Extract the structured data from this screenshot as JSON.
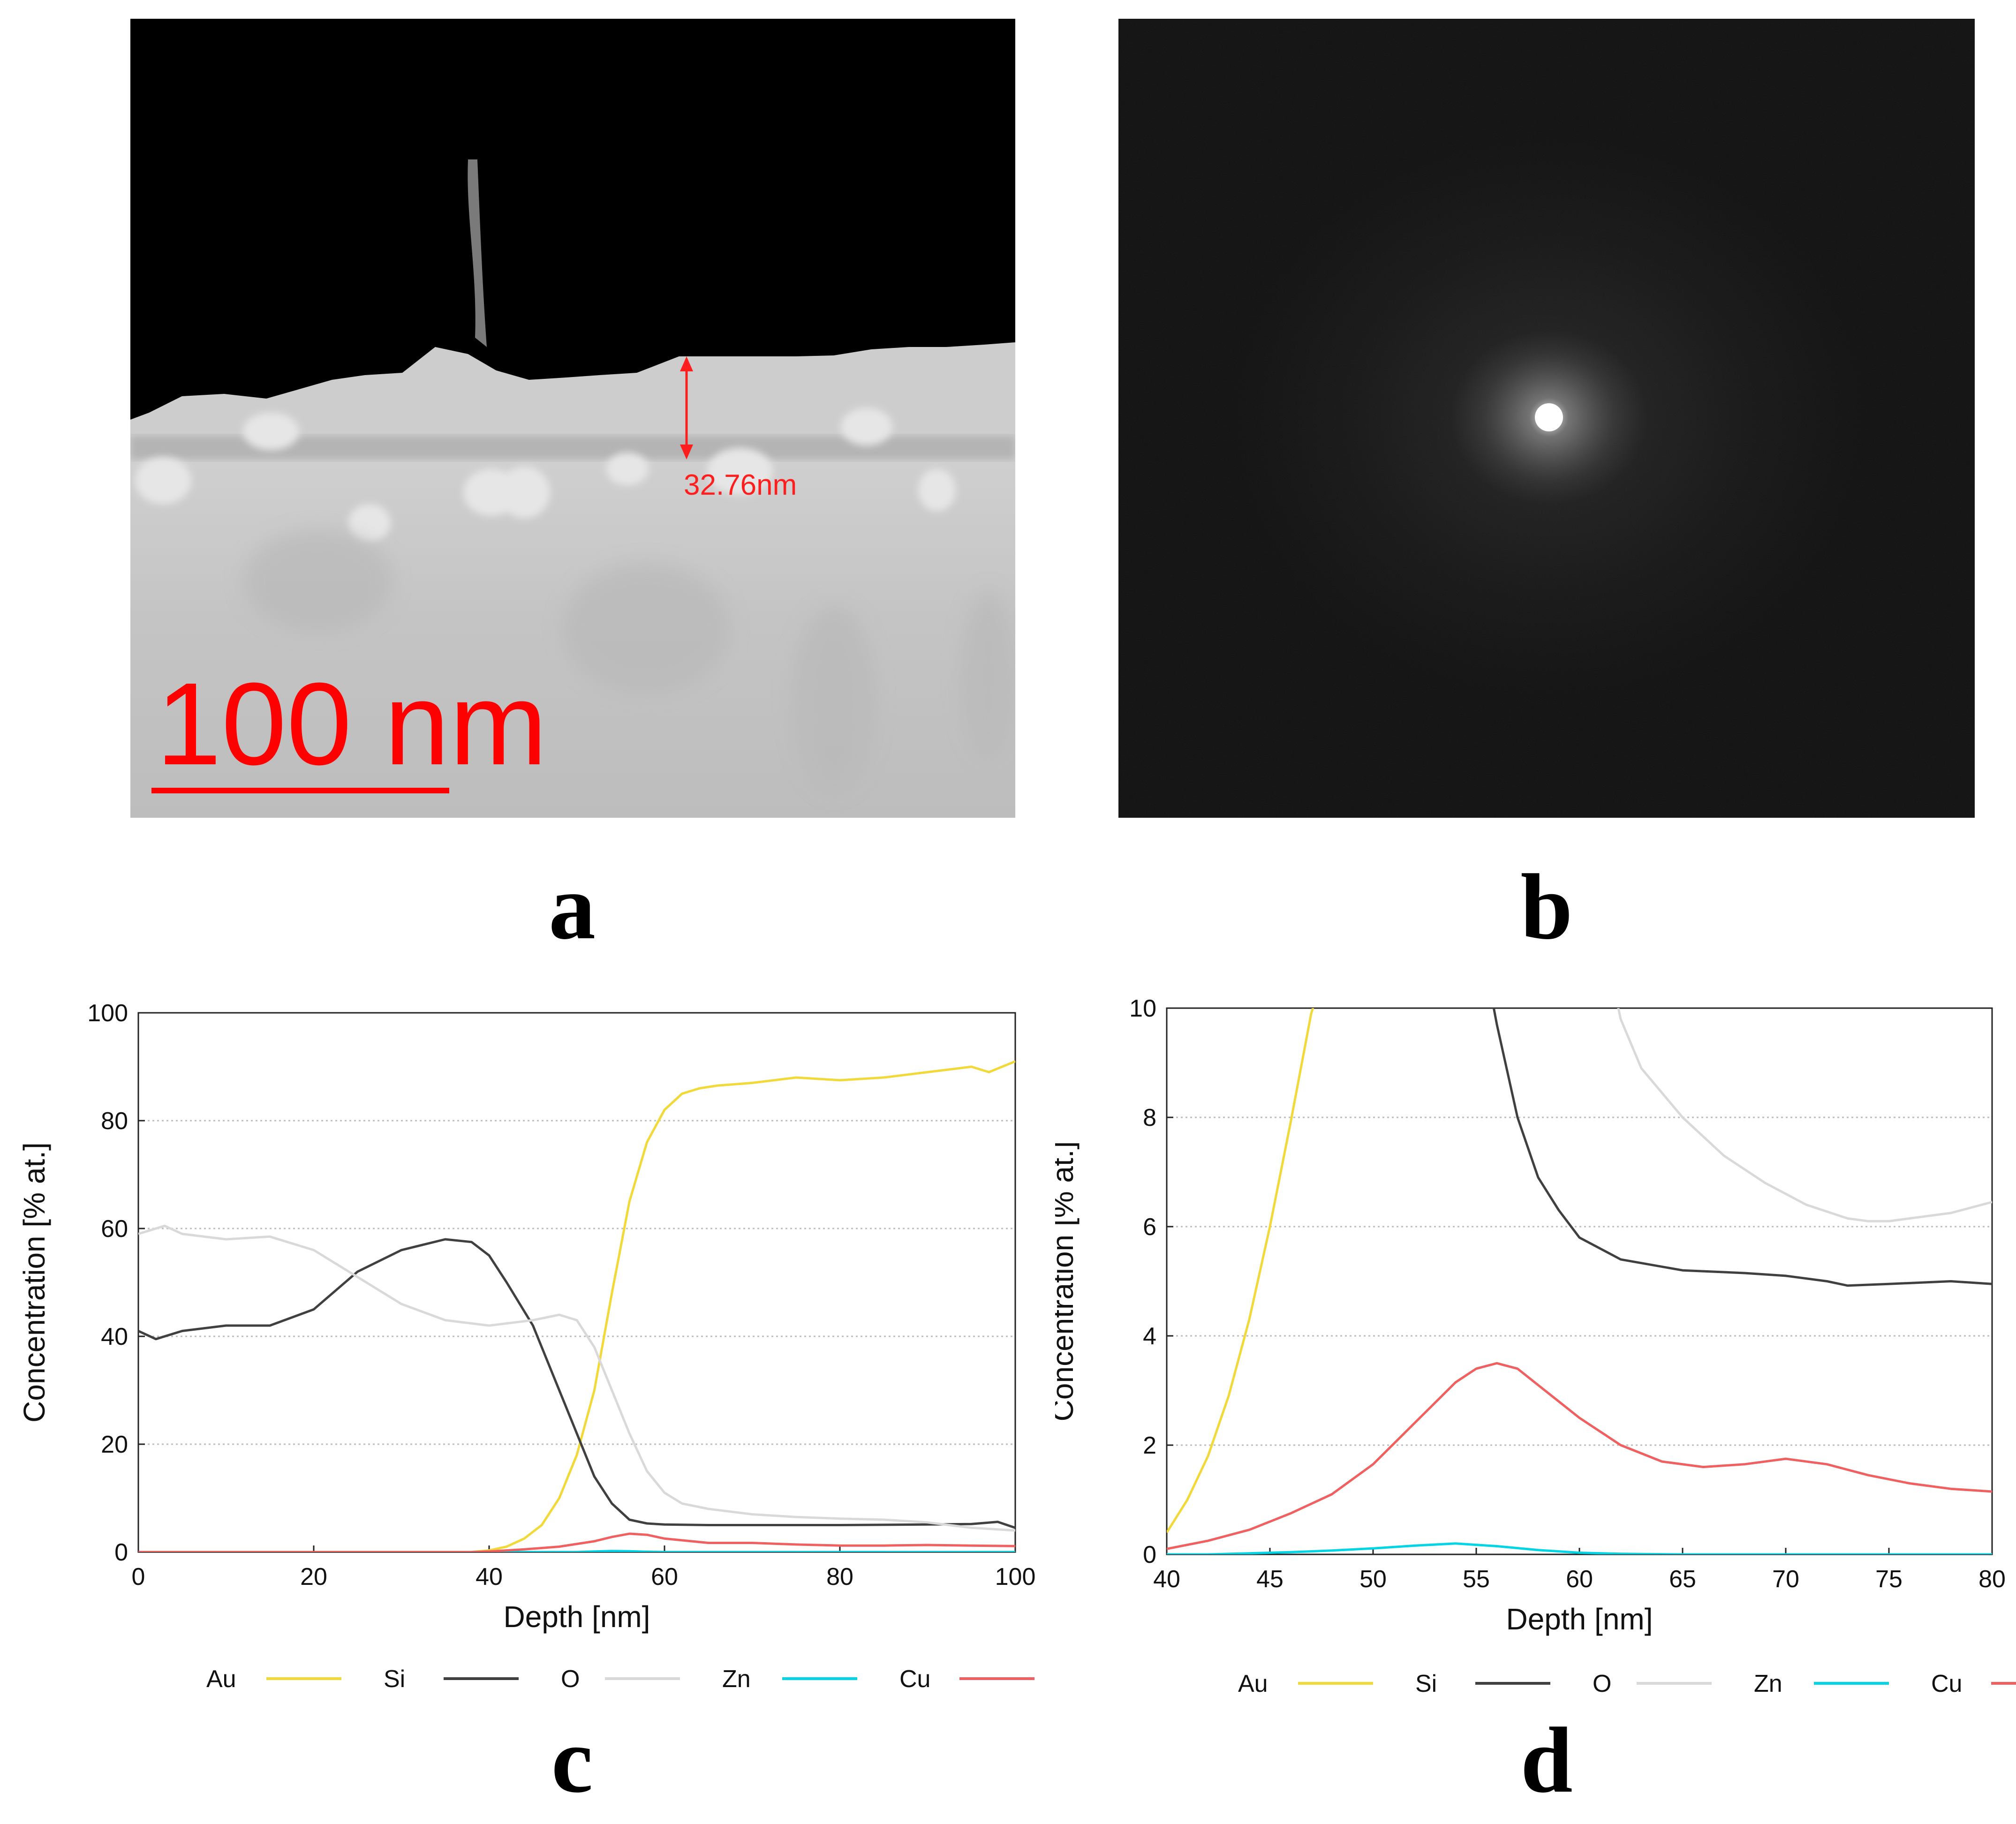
{
  "panels": {
    "a": {
      "label": "a",
      "measurement": "32.76nm",
      "scalebar": "100 nm"
    },
    "b": {
      "label": "b"
    },
    "c": {
      "label": "c"
    },
    "d": {
      "label": "d"
    }
  },
  "colors": {
    "Au": "#f2d93a",
    "Si": "#404040",
    "O": "#d9d9d9",
    "Zn": "#00d5e6",
    "Cu": "#f06060",
    "annotation": "#ff1e1e"
  },
  "chart_data": [
    {
      "id": "c",
      "type": "line",
      "title": "",
      "xlabel": "Depth [nm]",
      "ylabel": "Concentration [% at.]",
      "xlim": [
        0,
        100
      ],
      "ylim": [
        0,
        100
      ],
      "xticks": [
        0,
        20,
        40,
        60,
        80,
        100
      ],
      "yticks": [
        0,
        20,
        40,
        60,
        80,
        100
      ],
      "grid": "horizontal dotted",
      "legend": "bottom",
      "series": [
        {
          "name": "Au",
          "x": [
            0,
            38,
            40,
            42,
            44,
            46,
            48,
            50,
            52,
            54,
            56,
            58,
            60,
            62,
            64,
            66,
            70,
            75,
            80,
            85,
            90,
            95,
            97,
            100
          ],
          "y": [
            0,
            0,
            0.3,
            1,
            2.5,
            5,
            10,
            18,
            30,
            48,
            65,
            76,
            82,
            85,
            86,
            86.5,
            87,
            88,
            87.5,
            88,
            89,
            90,
            89,
            91
          ]
        },
        {
          "name": "Si",
          "x": [
            0,
            2,
            5,
            10,
            15,
            20,
            25,
            30,
            35,
            38,
            40,
            42,
            45,
            48,
            50,
            52,
            54,
            56,
            58,
            60,
            65,
            70,
            80,
            90,
            95,
            98,
            100
          ],
          "y": [
            41,
            39.5,
            41,
            42,
            42,
            45,
            52,
            56,
            58,
            57.5,
            55,
            50,
            42,
            30,
            22,
            14,
            9,
            6,
            5.3,
            5.1,
            5,
            5,
            5,
            5.1,
            5.2,
            5.6,
            4.5
          ]
        },
        {
          "name": "O",
          "x": [
            0,
            3,
            5,
            10,
            15,
            20,
            25,
            30,
            35,
            40,
            45,
            48,
            50,
            52,
            54,
            56,
            58,
            60,
            62,
            65,
            70,
            75,
            80,
            85,
            90,
            95,
            100
          ],
          "y": [
            59,
            60.5,
            59,
            58,
            58.5,
            56,
            51,
            46,
            43,
            42,
            43,
            44,
            43,
            38,
            30,
            22,
            15,
            11,
            9,
            8,
            7,
            6.5,
            6.2,
            6,
            5.5,
            4.5,
            4
          ]
        },
        {
          "name": "Zn",
          "x": [
            0,
            50,
            52,
            54,
            56,
            58,
            60,
            80,
            100
          ],
          "y": [
            0,
            0,
            0.1,
            0.2,
            0.15,
            0.05,
            0,
            0,
            0
          ]
        },
        {
          "name": "Cu",
          "x": [
            0,
            38,
            40,
            44,
            48,
            52,
            54,
            56,
            58,
            60,
            65,
            70,
            75,
            80,
            85,
            90,
            95,
            100
          ],
          "y": [
            0,
            0,
            0.1,
            0.5,
            1,
            2,
            2.8,
            3.4,
            3.2,
            2.5,
            1.7,
            1.7,
            1.4,
            1.2,
            1.2,
            1.3,
            1.2,
            1.1
          ]
        }
      ]
    },
    {
      "id": "d",
      "type": "line",
      "title": "",
      "xlabel": "Depth [nm]",
      "ylabel": "Concentration [% at.]",
      "xlim": [
        40,
        80
      ],
      "ylim": [
        0,
        10
      ],
      "xticks": [
        40,
        45,
        50,
        55,
        60,
        65,
        70,
        75,
        80
      ],
      "yticks": [
        0,
        2,
        4,
        6,
        8,
        10
      ],
      "grid": "horizontal dotted",
      "legend": "bottom",
      "series": [
        {
          "name": "Au",
          "x": [
            40,
            41,
            42,
            43,
            44,
            45,
            46,
            47,
            47.5
          ],
          "y": [
            0.4,
            1.0,
            1.8,
            2.9,
            4.3,
            6.0,
            7.9,
            9.9,
            10.5
          ]
        },
        {
          "name": "Si",
          "x": [
            55.6,
            56,
            57,
            58,
            59,
            60,
            62,
            65,
            68,
            70,
            72,
            73,
            75,
            78,
            80
          ],
          "y": [
            10.5,
            9.7,
            8.0,
            6.9,
            6.3,
            5.8,
            5.4,
            5.2,
            5.15,
            5.1,
            5.0,
            4.92,
            4.95,
            5.0,
            4.95
          ]
        },
        {
          "name": "O",
          "x": [
            61.6,
            62,
            63,
            65,
            67,
            69,
            71,
            73,
            74,
            75,
            76,
            78,
            80
          ],
          "y": [
            10.5,
            9.8,
            8.9,
            8.0,
            7.3,
            6.8,
            6.4,
            6.15,
            6.1,
            6.1,
            6.15,
            6.25,
            6.45
          ]
        },
        {
          "name": "Zn",
          "x": [
            40,
            42,
            44,
            46,
            48,
            50,
            52,
            54,
            56,
            58,
            60,
            62,
            65,
            70,
            75,
            80
          ],
          "y": [
            0,
            0,
            0.02,
            0.04,
            0.07,
            0.11,
            0.16,
            0.2,
            0.15,
            0.08,
            0.03,
            0.01,
            0,
            0,
            0,
            0
          ]
        },
        {
          "name": "Cu",
          "x": [
            40,
            42,
            44,
            46,
            48,
            50,
            52,
            54,
            55,
            56,
            57,
            58,
            60,
            62,
            64,
            66,
            68,
            70,
            72,
            74,
            76,
            78,
            80
          ],
          "y": [
            0.1,
            0.25,
            0.45,
            0.75,
            1.1,
            1.65,
            2.4,
            3.15,
            3.4,
            3.5,
            3.4,
            3.1,
            2.5,
            2.0,
            1.7,
            1.6,
            1.65,
            1.75,
            1.65,
            1.45,
            1.3,
            1.2,
            1.15
          ]
        }
      ]
    }
  ]
}
